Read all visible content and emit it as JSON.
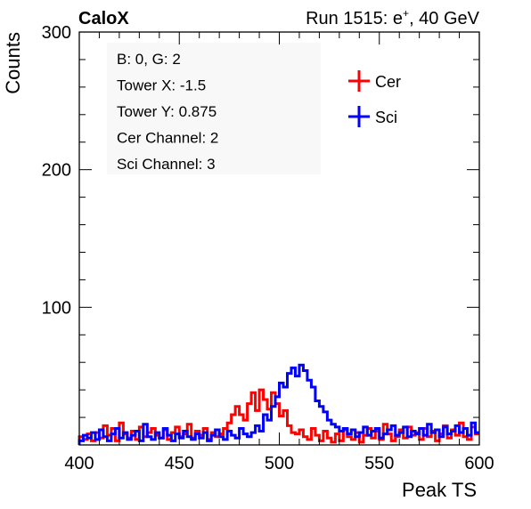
{
  "header": {
    "left": "CaloX",
    "right_prefix": "Run 1515: e",
    "right_superscript": "+",
    "right_suffix": ", 40 GeV"
  },
  "info_box": {
    "lines": [
      "B: 0, G: 2",
      "Tower X: -1.5",
      "Tower Y: 0.875",
      "Cer Channel: 2",
      "Sci Channel: 3"
    ]
  },
  "chart_data": {
    "type": "line",
    "style": "step histogram",
    "xlabel": "Peak TS",
    "ylabel": "Counts",
    "xlim": [
      400,
      600
    ],
    "ylim": [
      0,
      300
    ],
    "x_ticks": [
      400,
      450,
      500,
      550,
      600
    ],
    "y_ticks": [
      100,
      200,
      300
    ],
    "grid": false,
    "legend_position": "top-right",
    "bin_width": 2,
    "series": [
      {
        "name": "Cer",
        "color": "#ff0000",
        "x": [
          400,
          402,
          404,
          406,
          408,
          410,
          412,
          414,
          416,
          418,
          420,
          422,
          424,
          426,
          428,
          430,
          432,
          434,
          436,
          438,
          440,
          442,
          444,
          446,
          448,
          450,
          452,
          454,
          456,
          458,
          460,
          462,
          464,
          466,
          468,
          470,
          472,
          474,
          476,
          478,
          480,
          482,
          484,
          486,
          488,
          490,
          492,
          494,
          496,
          498,
          500,
          502,
          504,
          506,
          508,
          510,
          512,
          514,
          516,
          518,
          520,
          522,
          524,
          526,
          528,
          530,
          532,
          534,
          536,
          538,
          540,
          542,
          544,
          546,
          548,
          550,
          552,
          554,
          556,
          558,
          560,
          562,
          564,
          566,
          568,
          570,
          572,
          574,
          576,
          578,
          580,
          582,
          584,
          586,
          588,
          590,
          592,
          594,
          596,
          598
        ],
        "y": [
          6,
          4,
          8,
          3,
          9,
          5,
          14,
          7,
          12,
          3,
          16,
          8,
          5,
          10,
          4,
          13,
          6,
          9,
          12,
          7,
          5,
          11,
          4,
          9,
          13,
          6,
          8,
          15,
          5,
          10,
          7,
          12,
          4,
          9,
          6,
          8,
          12,
          16,
          22,
          28,
          22,
          18,
          30,
          38,
          25,
          40,
          33,
          26,
          38,
          30,
          21,
          25,
          14,
          9,
          8,
          11,
          6,
          4,
          12,
          7,
          3,
          10,
          5,
          2,
          8,
          3,
          11,
          6,
          4,
          9,
          2,
          7,
          12,
          5,
          10,
          4,
          15,
          8,
          3,
          6,
          11,
          5,
          13,
          7,
          9,
          4,
          12,
          6,
          10,
          3,
          8,
          14,
          5,
          11,
          7,
          16,
          6,
          4,
          13,
          8
        ]
      },
      {
        "name": "Sci",
        "color": "#0000ff",
        "x": [
          400,
          402,
          404,
          406,
          408,
          410,
          412,
          414,
          416,
          418,
          420,
          422,
          424,
          426,
          428,
          430,
          432,
          434,
          436,
          438,
          440,
          442,
          444,
          446,
          448,
          450,
          452,
          454,
          456,
          458,
          460,
          462,
          464,
          466,
          468,
          470,
          472,
          474,
          476,
          478,
          480,
          482,
          484,
          486,
          488,
          490,
          492,
          494,
          496,
          498,
          500,
          502,
          504,
          506,
          508,
          510,
          512,
          514,
          516,
          518,
          520,
          522,
          524,
          526,
          528,
          530,
          532,
          534,
          536,
          538,
          540,
          542,
          544,
          546,
          548,
          550,
          552,
          554,
          556,
          558,
          560,
          562,
          564,
          566,
          568,
          570,
          572,
          574,
          576,
          578,
          580,
          582,
          584,
          586,
          588,
          590,
          592,
          594,
          596,
          598
        ],
        "y": [
          3,
          7,
          5,
          9,
          4,
          11,
          6,
          3,
          8,
          12,
          5,
          9,
          4,
          7,
          10,
          3,
          15,
          6,
          4,
          9,
          5,
          12,
          7,
          3,
          8,
          5,
          10,
          6,
          4,
          8,
          5,
          9,
          3,
          7,
          11,
          6,
          4,
          10,
          7,
          5,
          12,
          8,
          6,
          9,
          14,
          10,
          22,
          18,
          28,
          35,
          45,
          42,
          52,
          56,
          50,
          58,
          54,
          47,
          42,
          32,
          28,
          24,
          18,
          15,
          13,
          10,
          12,
          8,
          11,
          6,
          9,
          13,
          7,
          10,
          12,
          5,
          8,
          11,
          14,
          7,
          9,
          13,
          6,
          10,
          8,
          12,
          7,
          15,
          9,
          11,
          6,
          13,
          8,
          10,
          14,
          9,
          12,
          7,
          16,
          9
        ]
      }
    ]
  }
}
